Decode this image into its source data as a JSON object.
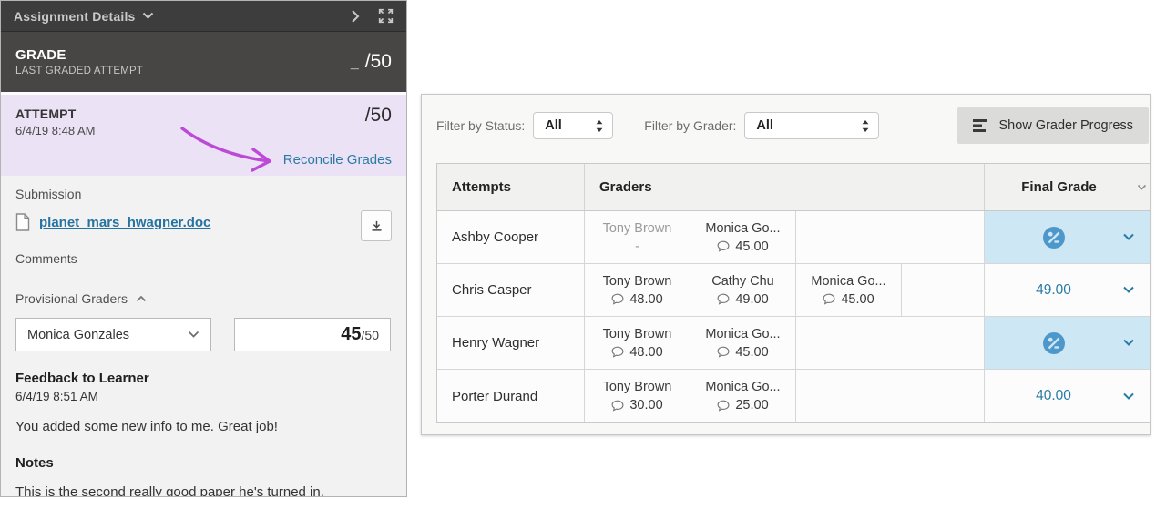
{
  "left_panel": {
    "header": {
      "title": "Assignment Details"
    },
    "grade_summary": {
      "label": "GRADE",
      "sublabel": "LAST GRADED ATTEMPT",
      "score_placeholder": "_",
      "score_total": "/50"
    },
    "attempt": {
      "label": "ATTEMPT",
      "date": "6/4/19 8:48 AM",
      "score_total": "/50",
      "reconcile_link": "Reconcile Grades"
    },
    "submission": {
      "label": "Submission",
      "file_name": "planet_mars_hwagner.doc",
      "comments_label": "Comments"
    },
    "provisional_graders": {
      "label": "Provisional Graders",
      "selected_grader": "Monica Gonzales",
      "score": "45",
      "score_total": "/50"
    },
    "feedback": {
      "label": "Feedback to Learner",
      "date": "6/4/19 8:51 AM",
      "text": "You added some new info to me. Great job!"
    },
    "notes": {
      "label": "Notes",
      "text": "This is the second really good paper he's turned in."
    }
  },
  "right_panel": {
    "filters": {
      "status_label": "Filter by Status:",
      "status_value": "All",
      "grader_label": "Filter by Grader:",
      "grader_value": "All"
    },
    "show_grader_progress_label": "Show Grader Progress",
    "table": {
      "headers": {
        "attempts": "Attempts",
        "graders": "Graders",
        "final_grade": "Final Grade"
      },
      "rows": [
        {
          "student": "Ashby Cooper",
          "graders": [
            {
              "name": "Tony Brown",
              "score": "-",
              "muted": true
            },
            {
              "name": "Monica Go...",
              "score": "45.00",
              "muted": false
            }
          ],
          "final": {
            "status": "pending"
          }
        },
        {
          "student": "Chris Casper",
          "graders": [
            {
              "name": "Tony Brown",
              "score": "48.00",
              "muted": false
            },
            {
              "name": "Cathy Chu",
              "score": "49.00",
              "muted": false
            },
            {
              "name": "Monica Go...",
              "score": "45.00",
              "muted": false
            }
          ],
          "final": {
            "status": "graded",
            "value": "49.00"
          }
        },
        {
          "student": "Henry Wagner",
          "graders": [
            {
              "name": "Tony Brown",
              "score": "48.00",
              "muted": false
            },
            {
              "name": "Monica Go...",
              "score": "45.00",
              "muted": false
            }
          ],
          "final": {
            "status": "pending"
          }
        },
        {
          "student": "Porter Durand",
          "graders": [
            {
              "name": "Tony Brown",
              "score": "30.00",
              "muted": false
            },
            {
              "name": "Monica Go...",
              "score": "25.00",
              "muted": false
            }
          ],
          "final": {
            "status": "graded",
            "value": "40.00"
          }
        }
      ]
    }
  },
  "colors": {
    "accent_blue": "#2a7aa6",
    "link_blue": "#2b7ba4",
    "pending_cell_bg": "#cde7f5",
    "pending_icon_blue": "#4d97cb",
    "attempt_section_bg": "#ebe2f6",
    "annotation_arrow_magenta": "#bd4ad6",
    "panel_header_dark": "#3d3d3d",
    "grade_section_dark": "#474645"
  }
}
